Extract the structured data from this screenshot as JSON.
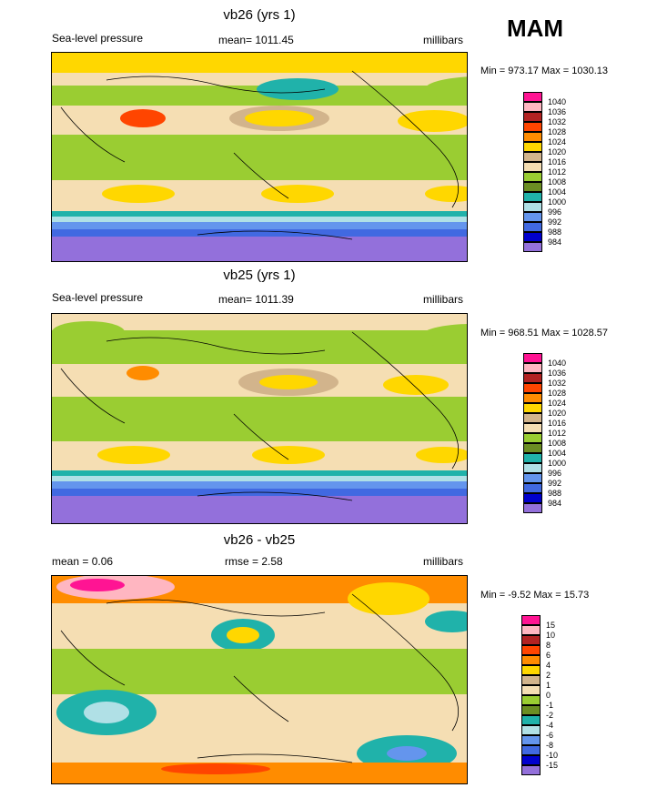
{
  "season": "MAM",
  "panels": [
    {
      "title": "vb26 (yrs 1)",
      "left_label": "Sea-level pressure",
      "center_label": "mean= 1011.45",
      "right_label": "millibars",
      "minmax": "Min = 973.17 Max = 1030.13",
      "legend": {
        "labels": [
          "1040",
          "1036",
          "1032",
          "1028",
          "1024",
          "1020",
          "1016",
          "1012",
          "1008",
          "1004",
          "1000",
          "996",
          "992",
          "988",
          "984"
        ],
        "colors": [
          "#ff1493",
          "#ffb6c1",
          "#b22222",
          "#ff4500",
          "#ff8c00",
          "#ffd700",
          "#d2b48c",
          "#f5deb3",
          "#9acd32",
          "#6b8e23",
          "#20b2aa",
          "#b0e0e6",
          "#6495ed",
          "#4169e1",
          "#0000cd",
          "#9370db"
        ]
      }
    },
    {
      "title": "vb25 (yrs 1)",
      "left_label": "Sea-level pressure",
      "center_label": "mean= 1011.39",
      "right_label": "millibars",
      "minmax": "Min = 968.51 Max = 1028.57",
      "legend": {
        "labels": [
          "1040",
          "1036",
          "1032",
          "1028",
          "1024",
          "1020",
          "1016",
          "1012",
          "1008",
          "1004",
          "1000",
          "996",
          "992",
          "988",
          "984"
        ],
        "colors": [
          "#ff1493",
          "#ffb6c1",
          "#b22222",
          "#ff4500",
          "#ff8c00",
          "#ffd700",
          "#d2b48c",
          "#f5deb3",
          "#9acd32",
          "#6b8e23",
          "#20b2aa",
          "#b0e0e6",
          "#6495ed",
          "#4169e1",
          "#0000cd",
          "#9370db"
        ]
      }
    },
    {
      "title": "vb26 - vb25",
      "left_label": "mean =   0.06",
      "center_label": "rmse =   2.58",
      "right_label": "millibars",
      "minmax": "Min =  -9.52 Max =  15.73",
      "legend": {
        "labels": [
          "15",
          "10",
          "8",
          "6",
          "4",
          "2",
          "1",
          "0",
          "-1",
          "-2",
          "-4",
          "-6",
          "-8",
          "-10",
          "-15"
        ],
        "colors": [
          "#ff1493",
          "#ffb6c1",
          "#b22222",
          "#ff4500",
          "#ff8c00",
          "#ffd700",
          "#d2b48c",
          "#f5deb3",
          "#9acd32",
          "#6b8e23",
          "#20b2aa",
          "#b0e0e6",
          "#6495ed",
          "#4169e1",
          "#0000cd",
          "#9370db"
        ]
      }
    }
  ],
  "chart_data": [
    {
      "type": "heatmap",
      "title": "vb26 (yrs 1)",
      "variable": "Sea-level pressure",
      "units": "millibars",
      "mean": 1011.45,
      "min": 973.17,
      "max": 1030.13,
      "season": "MAM",
      "contour_levels": [
        1040,
        1036,
        1032,
        1028,
        1024,
        1020,
        1016,
        1012,
        1008,
        1004,
        1000,
        996,
        992,
        988,
        984
      ]
    },
    {
      "type": "heatmap",
      "title": "vb25 (yrs 1)",
      "variable": "Sea-level pressure",
      "units": "millibars",
      "mean": 1011.39,
      "min": 968.51,
      "max": 1028.57,
      "season": "MAM",
      "contour_levels": [
        1040,
        1036,
        1032,
        1028,
        1024,
        1020,
        1016,
        1012,
        1008,
        1004,
        1000,
        996,
        992,
        988,
        984
      ]
    },
    {
      "type": "heatmap",
      "title": "vb26 - vb25",
      "units": "millibars",
      "mean": 0.06,
      "rmse": 2.58,
      "min": -9.52,
      "max": 15.73,
      "season": "MAM",
      "contour_levels": [
        15,
        10,
        8,
        6,
        4,
        2,
        1,
        0,
        -1,
        -2,
        -4,
        -6,
        -8,
        -10,
        -15
      ]
    }
  ]
}
